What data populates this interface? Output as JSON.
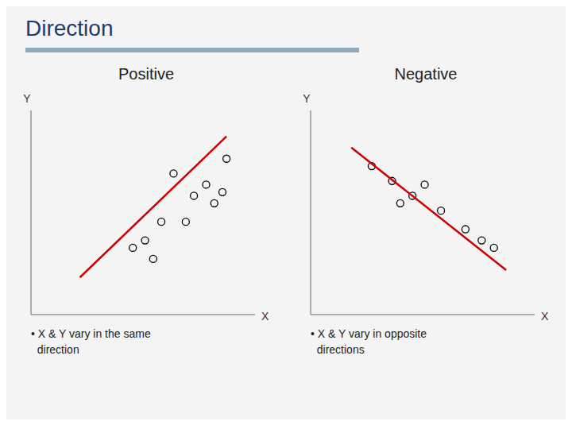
{
  "title": "Direction",
  "color": "#1a3c6e",
  "chart_data": [
    {
      "type": "scatter",
      "title": "Positive",
      "xlabel": "X",
      "ylabel": "Y",
      "annotations": [
        "• X & Y vary in the same\n  direction"
      ],
      "xlim": [
        0,
        5.5
      ],
      "ylim": [
        0,
        5.5
      ],
      "tick_labels": false,
      "grid": false,
      "series": [
        {
          "type": "scatter",
          "color": "black",
          "marker": "open circle",
          "x": [
            3.5,
            4.0,
            4.3,
            4.5,
            4.7,
            3.8,
            3.2,
            2.8,
            2.5,
            3.0,
            4.8
          ],
          "values": [
            3.8,
            3.2,
            3.5,
            3.0,
            3.3,
            2.5,
            2.5,
            2.0,
            1.8,
            1.5,
            4.2
          ]
        },
        {
          "type": "line",
          "color": "#cc0000",
          "line_style": "solid",
          "x": [
            1.2,
            4.8
          ],
          "values": [
            1.0,
            4.8
          ]
        }
      ]
    },
    {
      "type": "scatter",
      "title": "Negative",
      "xlabel": "X",
      "ylabel": "Y",
      "annotations": [
        "• X & Y vary in opposite\n  directions"
      ],
      "xlim": [
        0,
        5.5
      ],
      "ylim": [
        0,
        5.5
      ],
      "tick_labels": false,
      "grid": false,
      "series": [
        {
          "type": "scatter",
          "color": "black",
          "marker": "open circle",
          "x": [
            1.5,
            2.0,
            2.5,
            2.8,
            3.2,
            3.8,
            4.2,
            4.5,
            2.2
          ],
          "values": [
            4.0,
            3.6,
            3.2,
            3.5,
            2.8,
            2.3,
            2.0,
            1.8,
            3.0
          ]
        },
        {
          "type": "line",
          "color": "#cc0000",
          "line_style": "solid",
          "x": [
            1.0,
            4.8
          ],
          "values": [
            4.5,
            1.2
          ]
        }
      ]
    }
  ]
}
